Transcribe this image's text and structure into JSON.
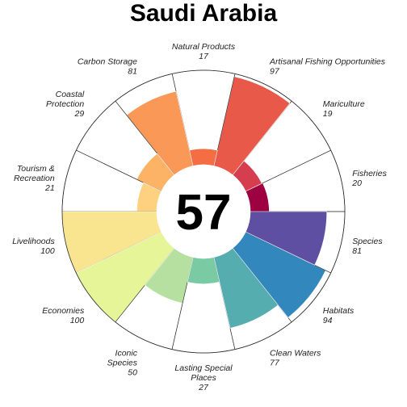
{
  "chart_data": {
    "type": "flower",
    "title": "Saudi Arabia",
    "center_score": "57",
    "value_range": [
      0,
      100
    ],
    "petals": [
      {
        "name": "Fisheries",
        "label_lines": [
          "Fisheries"
        ],
        "score": 20,
        "color": "#9E0142"
      },
      {
        "name": "Mariculture",
        "label_lines": [
          "Mariculture"
        ],
        "score": 19,
        "color": "#D53E4F"
      },
      {
        "name": "Artisanal Fishing Opportunities",
        "label_lines": [
          "Artisanal Fishing Opportunities"
        ],
        "score": 97,
        "color": "#E8594A"
      },
      {
        "name": "Natural Products",
        "label_lines": [
          "Natural Products"
        ],
        "score": 17,
        "color": "#F46D43"
      },
      {
        "name": "Carbon Storage",
        "label_lines": [
          "Carbon Storage"
        ],
        "score": 81,
        "color": "#FA9857"
      },
      {
        "name": "Coastal Protection",
        "label_lines": [
          "Coastal",
          "Protection"
        ],
        "score": 29,
        "color": "#FDB366"
      },
      {
        "name": "Tourism & Recreation",
        "label_lines": [
          "Tourism &",
          "Recreation"
        ],
        "score": 21,
        "color": "#FDD17F"
      },
      {
        "name": "Livelihoods",
        "label_lines": [
          "Livelihoods"
        ],
        "score": 100,
        "color": "#F9E48F"
      },
      {
        "name": "Economies",
        "label_lines": [
          "Economies"
        ],
        "score": 100,
        "color": "#E6F598"
      },
      {
        "name": "Iconic Species",
        "label_lines": [
          "Iconic",
          "Species"
        ],
        "score": 50,
        "color": "#B5E09F"
      },
      {
        "name": "Lasting Special Places",
        "label_lines": [
          "Lasting Special",
          "Places"
        ],
        "score": 27,
        "color": "#7ACBA4"
      },
      {
        "name": "Clean Waters",
        "label_lines": [
          "Clean Waters"
        ],
        "score": 77,
        "color": "#55ADB0"
      },
      {
        "name": "Habitats",
        "label_lines": [
          "Habitats"
        ],
        "score": 94,
        "color": "#3288BD"
      },
      {
        "name": "Species",
        "label_lines": [
          "Species"
        ],
        "score": 81,
        "color": "#5E4FA2"
      }
    ]
  }
}
